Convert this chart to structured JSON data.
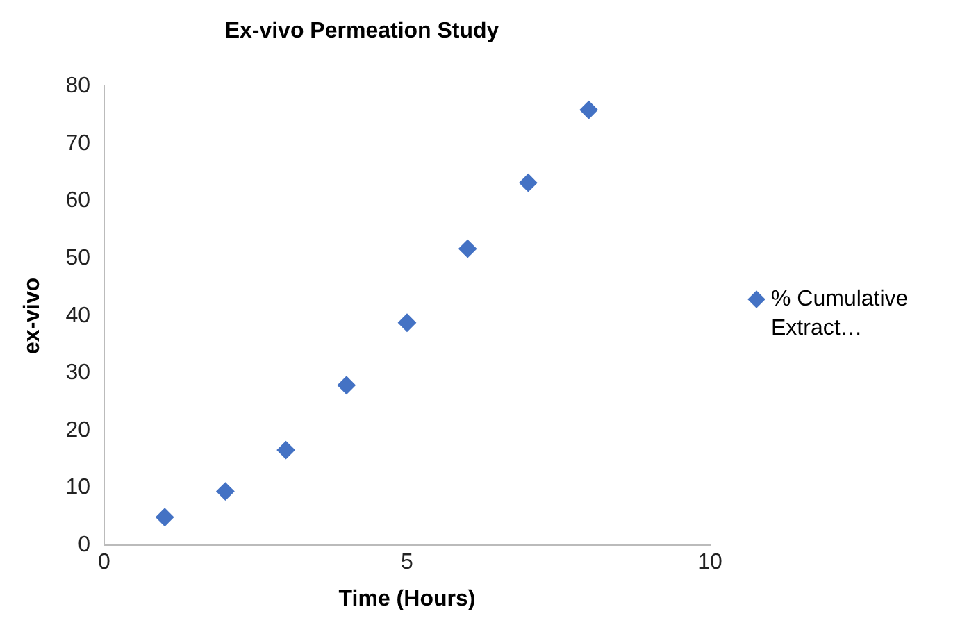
{
  "chart_data": {
    "type": "scatter",
    "title": "Ex-vivo Permeation Study",
    "xlabel": "Time (Hours)",
    "ylabel": "ex-vivo",
    "x": [
      1,
      2,
      3,
      4,
      5,
      6,
      7,
      8
    ],
    "series": [
      {
        "name": "% Cumulative Extract…",
        "color": "#4472c4",
        "values": [
          4.9,
          9.4,
          16.6,
          27.9,
          38.8,
          51.7,
          63.2,
          75.9
        ]
      }
    ],
    "xlim": [
      0,
      10
    ],
    "xticks": [
      0,
      5,
      10
    ],
    "ylim": [
      0,
      80
    ],
    "yticks": [
      0,
      10,
      20,
      30,
      40,
      50,
      60,
      70,
      80
    ],
    "grid": false,
    "legend": "right",
    "marker": "diamond"
  }
}
